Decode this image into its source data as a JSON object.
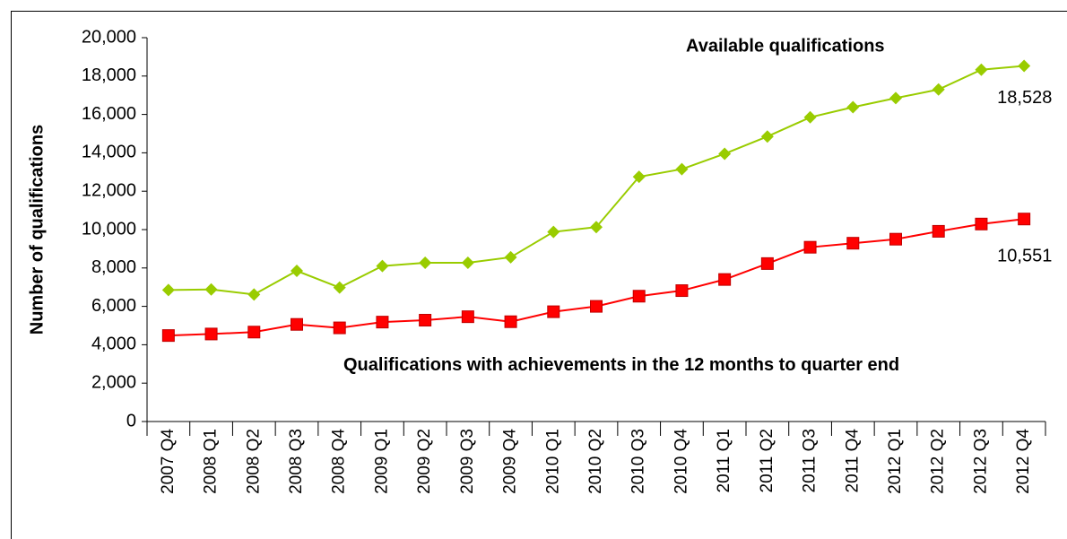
{
  "chart_data": {
    "type": "line",
    "y_label": "Number of qualifications",
    "categories": [
      "2007 Q4",
      "2008 Q1",
      "2008 Q2",
      "2008 Q3",
      "2008 Q4",
      "2009 Q1",
      "2009 Q2",
      "2009 Q3",
      "2009 Q4",
      "2010 Q1",
      "2010 Q2",
      "2010 Q3",
      "2010 Q4",
      "2011 Q1",
      "2011 Q2",
      "2011 Q3",
      "2011 Q4",
      "2012 Q1",
      "2012 Q2",
      "2012 Q3",
      "2012 Q4"
    ],
    "series": [
      {
        "name": "Available qualifications",
        "color": "#99cc00",
        "marker": "diamond",
        "values": [
          6850,
          6880,
          6620,
          7850,
          6980,
          8100,
          8270,
          8270,
          8560,
          9880,
          10130,
          12750,
          13150,
          13950,
          14850,
          15850,
          16380,
          16850,
          17300,
          18330,
          18528
        ],
        "value_labels": [
          null,
          null,
          null,
          null,
          null,
          null,
          null,
          null,
          null,
          null,
          null,
          null,
          null,
          null,
          null,
          null,
          null,
          null,
          null,
          null,
          "18,528"
        ]
      },
      {
        "name": "Qualifications with achievements in the 12 months to quarter end",
        "color": "#ff0000",
        "marker": "square",
        "values": [
          4480,
          4560,
          4660,
          5060,
          4880,
          5180,
          5280,
          5460,
          5200,
          5720,
          6000,
          6530,
          6820,
          7400,
          8230,
          9080,
          9290,
          9500,
          9910,
          10290,
          10551
        ],
        "value_labels": [
          null,
          null,
          null,
          null,
          null,
          null,
          null,
          null,
          null,
          null,
          null,
          null,
          null,
          null,
          null,
          null,
          null,
          null,
          null,
          null,
          "10,551"
        ]
      }
    ],
    "ylim": [
      0,
      20000
    ],
    "yticks": [
      0,
      {
        "value": 2000,
        "label": "2,000"
      },
      {
        "value": 4000,
        "label": "4,000"
      },
      {
        "value": 6000,
        "label": "6,000"
      },
      {
        "value": 8000,
        "label": "8,000"
      },
      {
        "value": 10000,
        "label": "10,000"
      },
      {
        "value": 12000,
        "label": "12,000"
      },
      {
        "value": 14000,
        "label": "14,000"
      },
      {
        "value": 16000,
        "label": "16,000"
      },
      {
        "value": 18000,
        "label": "18,000"
      },
      {
        "value": 20000,
        "label": "20,000"
      }
    ],
    "grid": false
  }
}
